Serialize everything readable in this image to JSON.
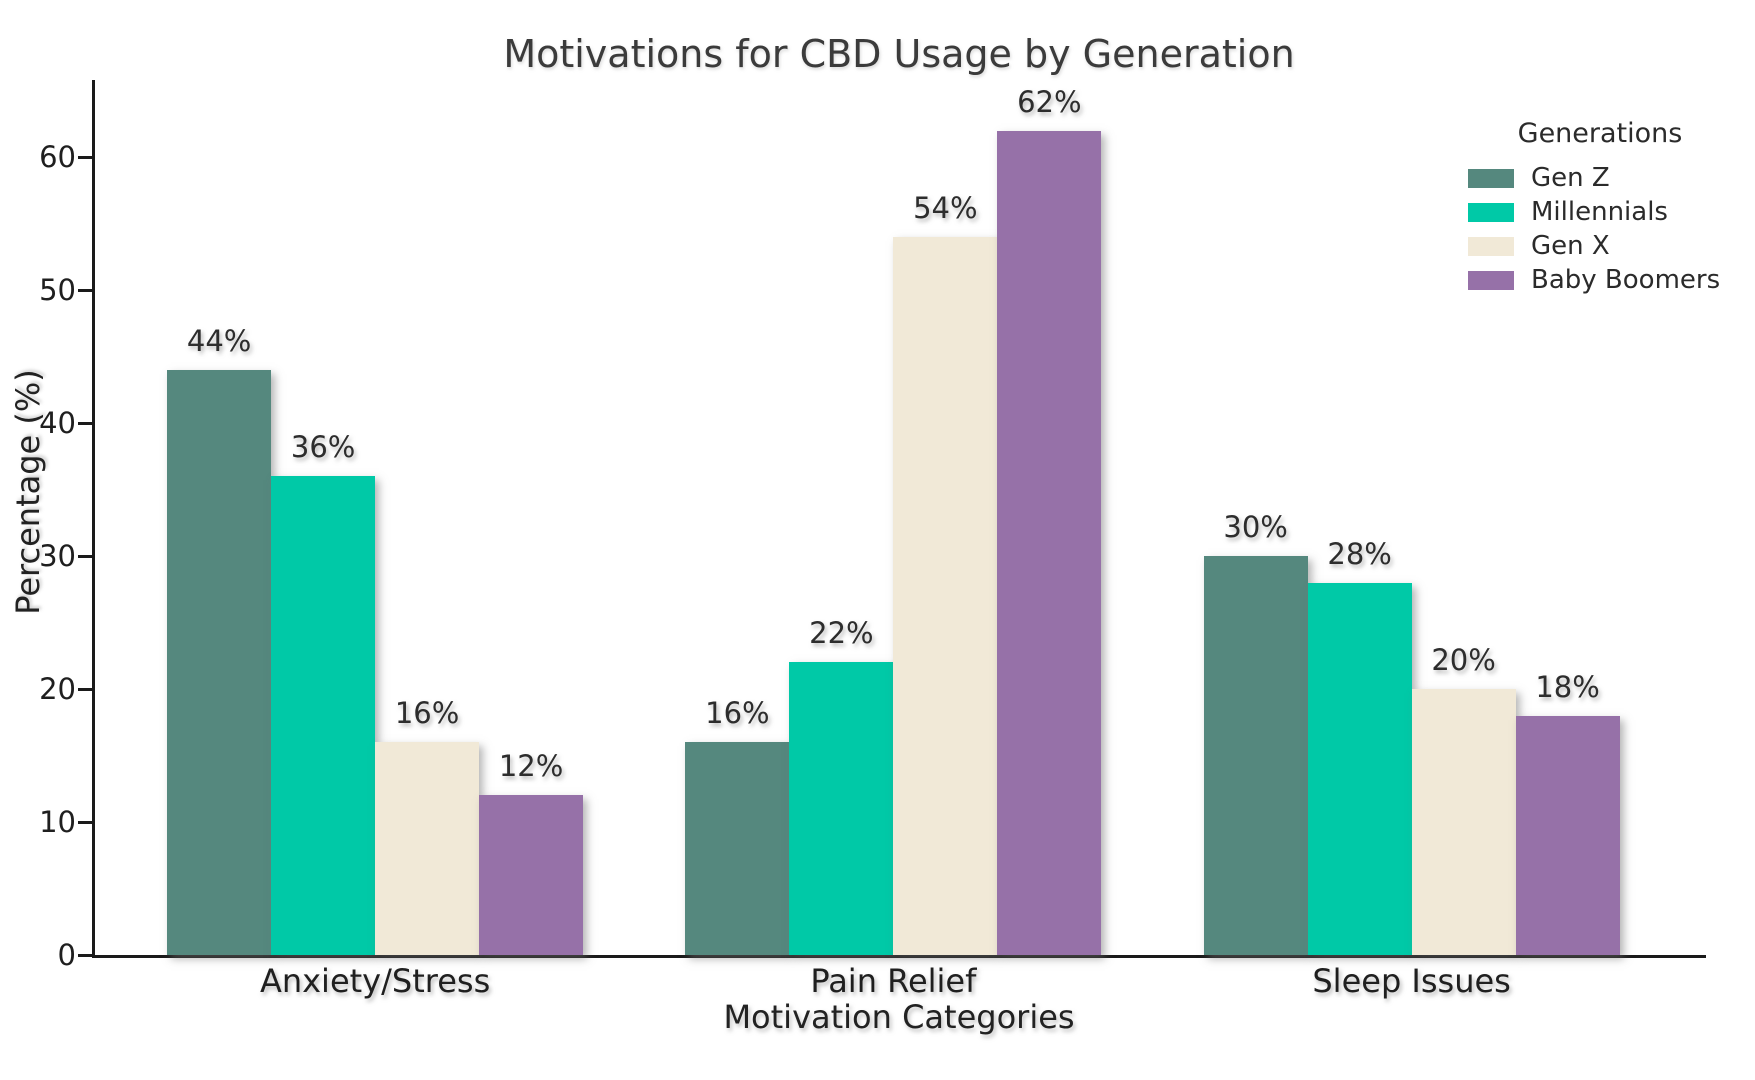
{
  "chart_data": {
    "type": "bar",
    "title": "Motivations for CBD Usage by Generation",
    "xlabel": "Motivation Categories",
    "ylabel": "Percentage (%)",
    "categories": [
      "Anxiety/Stress",
      "Pain Relief",
      "Sleep Issues"
    ],
    "series": [
      {
        "name": "Gen Z",
        "color": "#55887e",
        "values": [
          44,
          16,
          30
        ]
      },
      {
        "name": "Millennials",
        "color": "#00c9a7",
        "values": [
          36,
          22,
          28
        ]
      },
      {
        "name": "Gen X",
        "color": "#f1e9d7",
        "values": [
          16,
          54,
          20
        ]
      },
      {
        "name": "Baby Boomers",
        "color": "#9671a8",
        "values": [
          12,
          62,
          18
        ]
      }
    ],
    "value_suffix": "%",
    "value_labels": [
      [
        "44%",
        "16%",
        "30%"
      ],
      [
        "36%",
        "22%",
        "28%"
      ],
      [
        "16%",
        "54%",
        "20%"
      ],
      [
        "12%",
        "62%",
        "18%"
      ]
    ],
    "ylim": [
      0,
      65.8
    ],
    "yticks": [
      0,
      10,
      20,
      30,
      40,
      50,
      60
    ],
    "legend_title": "Generations",
    "legend_position": "upper right",
    "grid": false,
    "colors": {
      "axis": "#1a1a1a",
      "tick_text": "#1f1f1f",
      "title_text": "#3b3b3b",
      "background": "#ffffff"
    }
  }
}
